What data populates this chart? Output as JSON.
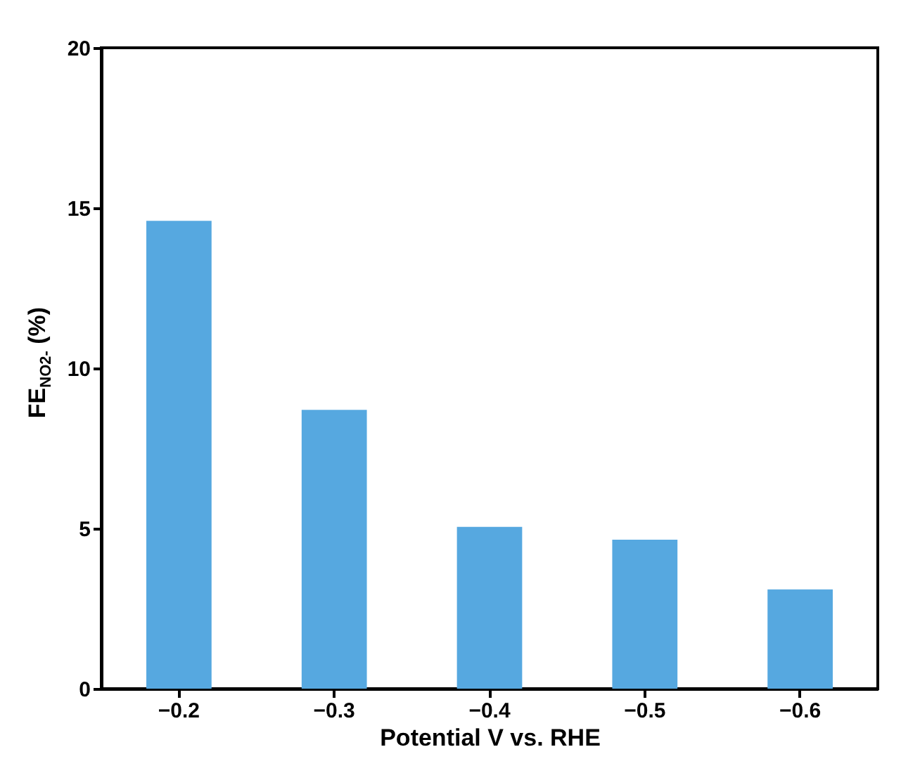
{
  "chart_data": {
    "type": "bar",
    "xlabel": "Potential V vs. RHE",
    "ylabel": "FE$_{NO2-}$ (%)",
    "categories": [
      "−0.2",
      "−0.3",
      "−0.4",
      "−0.5",
      "−0.6"
    ],
    "values": [
      14.6,
      8.7,
      5.05,
      4.65,
      3.1
    ],
    "color": "#56a8e0",
    "ylim": [
      0,
      20
    ],
    "yticks": [
      0,
      5,
      10,
      15,
      20
    ],
    "grid": false
  }
}
